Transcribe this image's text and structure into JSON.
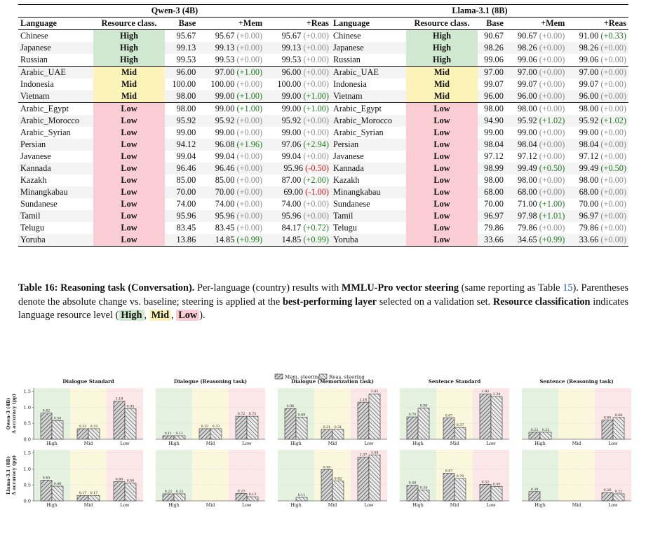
{
  "table": {
    "groups": [
      "Qwen-3 (4B)",
      "Llama-3.1 (8B)"
    ],
    "headers": [
      "Language",
      "Resource class.",
      "Base",
      "+Mem",
      "+Reas"
    ],
    "rows": [
      {
        "lang": "Chinese",
        "res": "High",
        "q": [
          "95.67",
          "95.67",
          "(+0.00)",
          "95.67",
          "(+0.00)"
        ],
        "l": [
          "90.67",
          "90.67",
          "(+0.00)",
          "91.00",
          "(+0.33)"
        ]
      },
      {
        "lang": "Japanese",
        "res": "High",
        "q": [
          "99.13",
          "99.13",
          "(+0.00)",
          "99.13",
          "(+0.00)"
        ],
        "l": [
          "98.26",
          "98.26",
          "(+0.00)",
          "98.26",
          "(+0.00)"
        ]
      },
      {
        "lang": "Russian",
        "res": "High",
        "q": [
          "99.53",
          "99.53",
          "(+0.00)",
          "99.53",
          "(+0.00)"
        ],
        "l": [
          "99.06",
          "99.06",
          "(+0.00)",
          "99.06",
          "(+0.00)"
        ]
      },
      {
        "lang": "Arabic_UAE",
        "res": "Mid",
        "q": [
          "96.00",
          "97.00",
          "(+1.00)",
          "96.00",
          "(+0.00)"
        ],
        "l": [
          "97.00",
          "97.00",
          "(+0.00)",
          "97.00",
          "(+0.00)"
        ]
      },
      {
        "lang": "Indonesia",
        "res": "Mid",
        "q": [
          "100.00",
          "100.00",
          "(+0.00)",
          "100.00",
          "(+0.00)"
        ],
        "l": [
          "99.07",
          "99.07",
          "(+0.00)",
          "99.07",
          "(+0.00)"
        ]
      },
      {
        "lang": "Vietnam",
        "res": "Mid",
        "q": [
          "98.00",
          "99.00",
          "(+1.00)",
          "99.00",
          "(+1.00)"
        ],
        "l": [
          "96.00",
          "96.00",
          "(+0.00)",
          "96.00",
          "(+0.00)"
        ]
      },
      {
        "lang": "Arabic_Egypt",
        "res": "Low",
        "q": [
          "98.00",
          "99.00",
          "(+1.00)",
          "99.00",
          "(+1.00)"
        ],
        "l": [
          "98.00",
          "98.00",
          "(+0.00)",
          "98.00",
          "(+0.00)"
        ]
      },
      {
        "lang": "Arabic_Morocco",
        "res": "Low",
        "q": [
          "95.92",
          "95.92",
          "(+0.00)",
          "95.92",
          "(+0.00)"
        ],
        "l": [
          "94.90",
          "95.92",
          "(+1.02)",
          "95.92",
          "(+1.02)"
        ]
      },
      {
        "lang": "Arabic_Syrian",
        "res": "Low",
        "q": [
          "99.00",
          "99.00",
          "(+0.00)",
          "99.00",
          "(+0.00)"
        ],
        "l": [
          "99.00",
          "99.00",
          "(+0.00)",
          "99.00",
          "(+0.00)"
        ]
      },
      {
        "lang": "Persian",
        "res": "Low",
        "q": [
          "94.12",
          "96.08",
          "(+1.96)",
          "97.06",
          "(+2.94)"
        ],
        "l": [
          "98.04",
          "98.04",
          "(+0.00)",
          "98.04",
          "(+0.00)"
        ]
      },
      {
        "lang": "Javanese",
        "res": "Low",
        "q": [
          "99.04",
          "99.04",
          "(+0.00)",
          "99.04",
          "(+0.00)"
        ],
        "l": [
          "97.12",
          "97.12",
          "(+0.00)",
          "97.12",
          "(+0.00)"
        ]
      },
      {
        "lang": "Kannada",
        "res": "Low",
        "q": [
          "96.46",
          "96.46",
          "(+0.00)",
          "95.96",
          "(-0.50)"
        ],
        "l": [
          "98.99",
          "99.49",
          "(+0.50)",
          "99.49",
          "(+0.50)"
        ]
      },
      {
        "lang": "Kazakh",
        "res": "Low",
        "q": [
          "85.00",
          "85.00",
          "(+0.00)",
          "87.00",
          "(+2.00)"
        ],
        "l": [
          "98.00",
          "98.00",
          "(+0.00)",
          "98.00",
          "(+0.00)"
        ]
      },
      {
        "lang": "Minangkabau",
        "res": "Low",
        "q": [
          "70.00",
          "70.00",
          "(+0.00)",
          "69.00",
          "(-1.00)"
        ],
        "l": [
          "68.00",
          "68.00",
          "(+0.00)",
          "68.00",
          "(+0.00)"
        ]
      },
      {
        "lang": "Sundanese",
        "res": "Low",
        "q": [
          "74.00",
          "74.00",
          "(+0.00)",
          "74.00",
          "(+0.00)"
        ],
        "l": [
          "70.00",
          "71.00",
          "(+1.00)",
          "70.00",
          "(+0.00)"
        ]
      },
      {
        "lang": "Tamil",
        "res": "Low",
        "q": [
          "95.96",
          "95.96",
          "(+0.00)",
          "95.96",
          "(+0.00)"
        ],
        "l": [
          "96.97",
          "97.98",
          "(+1.01)",
          "96.97",
          "(+0.00)"
        ]
      },
      {
        "lang": "Telugu",
        "res": "Low",
        "q": [
          "83.45",
          "83.45",
          "(+0.00)",
          "84.17",
          "(+0.72)"
        ],
        "l": [
          "79.86",
          "79.86",
          "(+0.00)",
          "79.86",
          "(+0.00)"
        ]
      },
      {
        "lang": "Yoruba",
        "res": "Low",
        "q": [
          "13.86",
          "14.85",
          "(+0.99)",
          "14.85",
          "(+0.99)"
        ],
        "l": [
          "33.66",
          "34.65",
          "(+0.99)",
          "33.66",
          "(+0.00)"
        ]
      }
    ]
  },
  "caption": {
    "label": "Table 16:",
    "title": "Reasoning task (Conversation).",
    "t1": "Per-language (country) results with",
    "b1": "MMLU-Pro vector steering",
    "t2": "(same reporting as Table",
    "ref": "15",
    "t3": "). Parentheses denote the absolute change vs. baseline; steering is applied at the",
    "b2": "best-performing layer",
    "t4": "selected on a validation set.",
    "b3": "Resource classification",
    "t5": "indicates language resource level",
    "open": "(",
    "high": "High",
    "comma1": ",",
    "mid": "Mid",
    "comma2": ",",
    "low": "Low",
    "close": ")."
  },
  "chart_data": {
    "type": "bar",
    "legend": [
      "Mem. steering",
      "Reas. steering"
    ],
    "legend_position": "top-center",
    "categories": [
      "High",
      "Mid",
      "Low"
    ],
    "category_colors": {
      "High": "#e6f2e0",
      "Mid": "#fbf7dc",
      "Low": "#fbe6e8"
    },
    "ylim": [
      0,
      1.6
    ],
    "yticks": [
      "0.0",
      "0.5",
      "1.0",
      "1.5"
    ],
    "columns": [
      "Dialogue Standard",
      "Dialogue (Reasoning task)",
      "Dialogue (Memorization task)",
      "Sentence Standard",
      "Sentence (Reasoning task)"
    ],
    "rows": [
      {
        "ylabel": [
          "Qwen-3 (4B)",
          "Δ accuracy (pp)"
        ],
        "panels": [
          {
            "mem": [
              0.82,
              0.33,
              1.19
            ],
            "reas": [
              0.58,
              0.33,
              0.95
            ]
          },
          {
            "mem": [
              0.11,
              0.33,
              0.72
            ],
            "reas": [
              0.11,
              0.33,
              0.72
            ]
          },
          {
            "mem": [
              0.96,
              0.31,
              1.16
            ],
            "reas": [
              0.69,
              0.31,
              1.42
            ]
          },
          {
            "mem": [
              0.7,
              0.67,
              1.42
            ],
            "reas": [
              0.98,
              0.37,
              1.34
            ]
          },
          {
            "mem": [
              0.22,
              0.0,
              0.6
            ],
            "reas": [
              0.22,
              0.0,
              0.68
            ]
          }
        ]
      },
      {
        "ylabel": [
          "Llama-3.1 (8B)",
          "Δ accuracy (pp)"
        ],
        "panels": [
          {
            "mem": [
              0.65,
              0.17,
              0.6
            ],
            "reas": [
              0.46,
              0.17,
              0.56
            ]
          },
          {
            "mem": [
              0.22,
              0.0,
              0.23
            ],
            "reas": [
              0.22,
              0.0,
              0.13
            ]
          },
          {
            "mem": [
              0.0,
              0.98,
              1.37
            ],
            "reas": [
              0.11,
              0.62,
              1.44
            ]
          },
          {
            "mem": [
              0.49,
              0.87,
              0.52
            ],
            "reas": [
              0.34,
              0.7,
              0.45
            ]
          },
          {
            "mem": [
              0.29,
              0.0,
              0.26
            ],
            "reas": [
              0.0,
              0.0,
              0.22
            ]
          }
        ]
      }
    ]
  }
}
